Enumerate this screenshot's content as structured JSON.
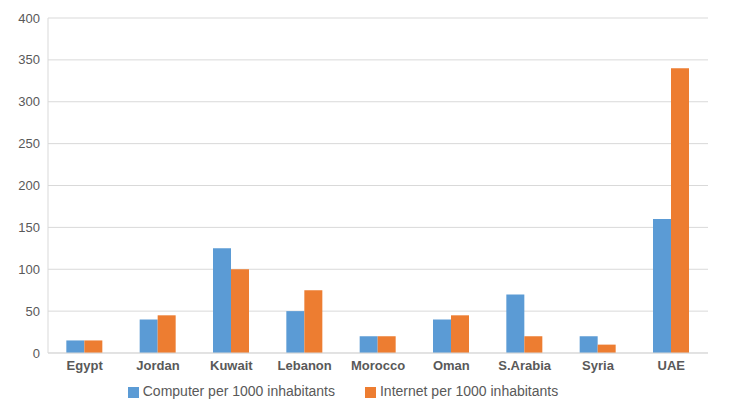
{
  "chart_data": {
    "type": "bar",
    "categories": [
      "Egypt",
      "Jordan",
      "Kuwait",
      "Lebanon",
      "Morocco",
      "Oman",
      "S.Arabia",
      "Syria",
      "UAE"
    ],
    "series": [
      {
        "name": "Computer per 1000 inhabitants",
        "color": "#5b9bd5",
        "values": [
          15,
          40,
          125,
          50,
          20,
          40,
          70,
          20,
          160
        ]
      },
      {
        "name": "Internet per 1000 inhabitants",
        "color": "#ed7d31",
        "values": [
          15,
          45,
          100,
          75,
          20,
          45,
          20,
          10,
          340
        ]
      }
    ],
    "ylim": [
      0,
      400
    ],
    "yticks": [
      0,
      50,
      100,
      150,
      200,
      250,
      300,
      350,
      400
    ],
    "grid": true,
    "legend": "bottom"
  }
}
